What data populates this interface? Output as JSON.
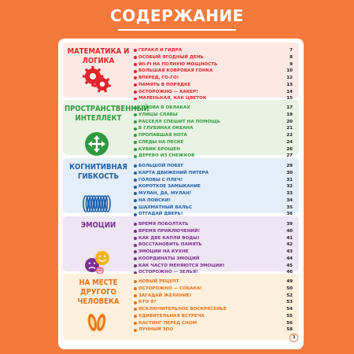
{
  "title": "СОДЕРЖАНИЕ",
  "page_number": "3",
  "sections": [
    {
      "title": "МАТЕМАТИКА И ЛОГИКА",
      "icon": "gears-icon",
      "bg": "#fde8e4",
      "title_color": "#e0262c",
      "items": [
        {
          "label": "ГЕРАКЛ И ГИДРА",
          "page": "7"
        },
        {
          "label": "ОСОБЫЙ ЯГОДНЫЙ ДЕНЬ",
          "page": "8"
        },
        {
          "label": "WI-FI НА ПОЛНУЮ МОЩНОСТЬ",
          "page": "9"
        },
        {
          "label": "БОЛЬШАЯ КОВРОВАЯ ГОНКА",
          "page": "10"
        },
        {
          "label": "ВПЕРЕД, ГО-ГО!",
          "page": "12"
        },
        {
          "label": "ПАМЯТЬ В ПОРЯДКЕ",
          "page": "13"
        },
        {
          "label": "ОСТОРОЖНО — ХАКЕР!",
          "page": "14"
        },
        {
          "label": "МАЛЕНЬКАЯ, КАК ЦВЕТОК",
          "page": "15"
        }
      ]
    },
    {
      "title": "ПРОСТРАНСТВЕННЫЙ ИНТЕЛЛЕКТ",
      "icon": "move-arrows-icon",
      "bg": "#e8f3e3",
      "title_color": "#2f9a3d",
      "items": [
        {
          "label": "ГОЛОВА В ОБЛАКАХ",
          "page": "17"
        },
        {
          "label": "УЛИЦЫ СЛАВЫ",
          "page": "19"
        },
        {
          "label": "РАССЕЛЛ СПЕШИТ НА ПОМОЩЬ",
          "page": "20"
        },
        {
          "label": "В ГЛУБИНАХ ОКЕАНА",
          "page": "21"
        },
        {
          "label": "ПРОПАВШАЯ НОТА",
          "page": "22"
        },
        {
          "label": "СЛЕДЫ НА ПЕСКЕ",
          "page": "24"
        },
        {
          "label": "КУБИК БРОШЕН",
          "page": "26"
        },
        {
          "label": "ДЕРЕВО ИЗ СНЕЖКОВ",
          "page": "27"
        }
      ]
    },
    {
      "title": "КОГНИТИВНАЯ ГИБКОСТЬ",
      "icon": "spring-icon",
      "bg": "#e4eef8",
      "title_color": "#1f5fa8",
      "items": [
        {
          "label": "БОЛЬШОЙ ПОБЕГ",
          "page": "29"
        },
        {
          "label": "КАРТА ДВИЖЕНИЙ ПИТЕРА",
          "page": "30"
        },
        {
          "label": "ГОЛОВЫ С ПЛЕЧ!",
          "page": "31"
        },
        {
          "label": "КОРОТКОЕ ЗАМЫКАНИЕ",
          "page": "32"
        },
        {
          "label": "МУЛАН, ДА, МУЛАН!",
          "page": "33"
        },
        {
          "label": "НА ПОИСКИ!",
          "page": "34"
        },
        {
          "label": "ШАХМАТНЫЙ ВАЛЬС",
          "page": "35"
        },
        {
          "label": "ОТГАДАЙ ДВЕРЬ!",
          "page": "36"
        }
      ]
    },
    {
      "title": "ЭМОЦИИ",
      "icon": "smiley-faces-icon",
      "bg": "#efe6f3",
      "title_color": "#7b2f8e",
      "items": [
        {
          "label": "ВРЕМЯ ПОБОЛТАТЬ",
          "page": "39"
        },
        {
          "label": "ВРЕМЯ ПРИКЛЮЧЕНИЙ!",
          "page": "40"
        },
        {
          "label": "КАК ДВЕ КАПЛИ ВОДЫ!",
          "page": "41"
        },
        {
          "label": "ВОССТАНОВИТЬ ПАМЯТЬ",
          "page": "42"
        },
        {
          "label": "ЭМОЦИИ НА КУХНЕ",
          "page": "43"
        },
        {
          "label": "КООРДИНАТЫ ЭМОЦИЙ",
          "page": "44"
        },
        {
          "label": "КАК ЧАСТО МЕНЯЮТСЯ ЭМОЦИИ!",
          "page": "45"
        },
        {
          "label": "ОСТОРОЖНО — ЗЕЛЬЯ!",
          "page": "46"
        }
      ]
    },
    {
      "title": "НА МЕСТЕ ДРУГОГО ЧЕЛОВЕКА",
      "icon": "footprints-icon",
      "bg": "#fdf0dc",
      "title_color": "#e8731c",
      "items": [
        {
          "label": "НОВЫЙ РЕЦЕПТ",
          "page": "49"
        },
        {
          "label": "ОСТОРОЖНО — СОБАКА!",
          "page": "50"
        },
        {
          "label": "ЗАГАДАЙ ЖЕЛАНИЕ!",
          "page": "52"
        },
        {
          "label": "КТО Я?",
          "page": "53"
        },
        {
          "label": "ИСКЛЮЧИТЕЛЬНОЕ ВОСКРЕСЕНЬЕ",
          "page": "54"
        },
        {
          "label": "УДИВИТЕЛЬНАЯ ВСТРЕЧА",
          "page": "55"
        },
        {
          "label": "КАСТИНГ ПЕРЕД СНОМ",
          "page": "56"
        },
        {
          "label": "ЛУННЫЙ ЗОО",
          "page": "58"
        }
      ]
    }
  ]
}
